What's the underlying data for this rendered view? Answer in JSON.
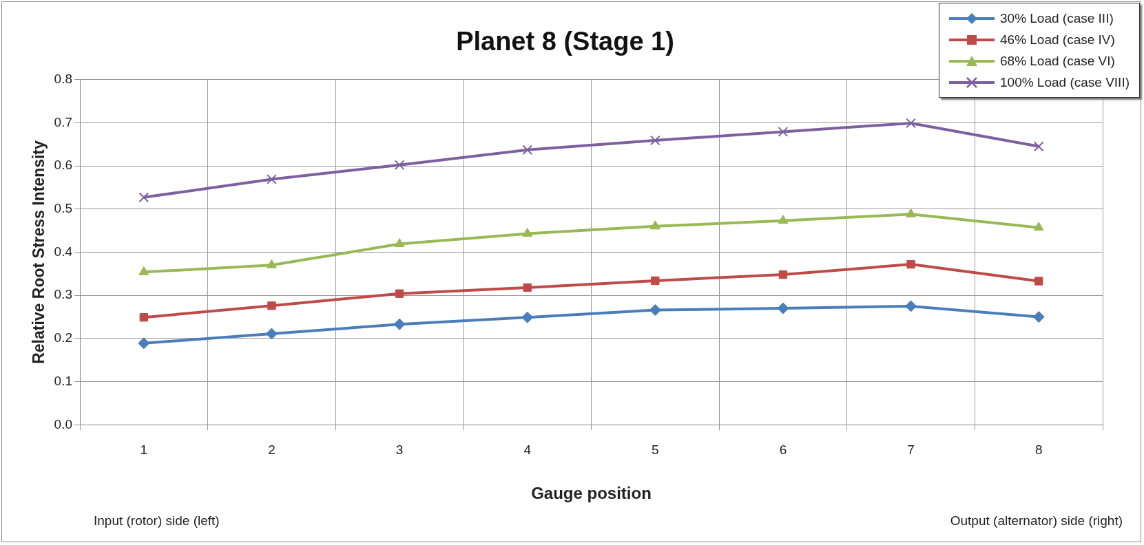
{
  "chart_data": {
    "type": "line",
    "title": "Planet 8 (Stage 1)",
    "xlabel": "Gauge position",
    "ylabel": "Relative Root Stress Intensity",
    "categories": [
      "1",
      "2",
      "3",
      "4",
      "5",
      "6",
      "7",
      "8"
    ],
    "series": [
      {
        "name": "30% Load (case III)",
        "color": "#4a7ebb",
        "marker": "diamond",
        "values": [
          0.189,
          0.211,
          0.233,
          0.249,
          0.266,
          0.27,
          0.275,
          0.25
        ]
      },
      {
        "name": "46% Load (case IV)",
        "color": "#be4b48",
        "marker": "square",
        "values": [
          0.249,
          0.276,
          0.304,
          0.318,
          0.334,
          0.348,
          0.372,
          0.333
        ]
      },
      {
        "name": "68% Load (case VI)",
        "color": "#98b954",
        "marker": "triangle",
        "values": [
          0.354,
          0.37,
          0.419,
          0.443,
          0.46,
          0.473,
          0.488,
          0.457
        ]
      },
      {
        "name": "100% Load (case VIII)",
        "color": "#7d60a0",
        "marker": "cross",
        "values": [
          0.527,
          0.569,
          0.602,
          0.637,
          0.659,
          0.679,
          0.699,
          0.645
        ]
      }
    ],
    "ylim": [
      0,
      0.8
    ],
    "yticks": [
      {
        "value": 0,
        "label": "0.0"
      },
      {
        "value": 0.1,
        "label": "0.1"
      },
      {
        "value": 0.2,
        "label": "0.2"
      },
      {
        "value": 0.3,
        "label": "0.3"
      },
      {
        "value": 0.4,
        "label": "0.4"
      },
      {
        "value": 0.5,
        "label": "0.5"
      },
      {
        "value": 0.6,
        "label": "0.6"
      },
      {
        "value": 0.7,
        "label": "0.7"
      },
      {
        "value": 0.8,
        "label": "0.8"
      }
    ],
    "grid": true,
    "legend": "top right",
    "line_style": "solid",
    "annotations": [
      "Input (rotor) side (left)",
      "Output (alternator) side (right)"
    ]
  }
}
